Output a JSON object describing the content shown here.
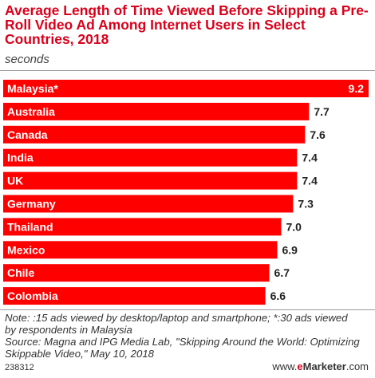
{
  "chart_data": {
    "type": "bar",
    "orientation": "horizontal",
    "title": "Average Length of Time Viewed Before Skipping a Pre-Roll Video Ad Among Internet Users in Select Countries, 2018",
    "subtitle": "seconds",
    "categories": [
      "Malaysia*",
      "Australia",
      "Canada",
      "India",
      "UK",
      "Germany",
      "Thailand",
      "Mexico",
      "Chile",
      "Colombia"
    ],
    "values": [
      9.2,
      7.7,
      7.6,
      7.4,
      7.4,
      7.3,
      7.0,
      6.9,
      6.7,
      6.6
    ],
    "data_labels": [
      "9.2",
      "7.7",
      "7.6",
      "7.4",
      "7.4",
      "7.3",
      "7.0",
      "6.9",
      "6.7",
      "6.6"
    ],
    "xlim": [
      0,
      9.2
    ],
    "bar_color": "#ff0000",
    "highlight_color": "#ff0000",
    "grid": false
  },
  "notes": {
    "line1": "Note: :15 ads viewed by desktop/laptop and smartphone; *:30 ads viewed",
    "line2": "by respondents in Malaysia",
    "line3": "Source: Magna and IPG Media Lab, \"Skipping Around the World: Optimizing",
    "line4": "Skippable Video,\" May 10, 2018"
  },
  "footer": {
    "id": "238312",
    "brand_prefix": "www.",
    "brand_e": "e",
    "brand_main": "Marketer",
    "brand_suffix": ".com"
  }
}
